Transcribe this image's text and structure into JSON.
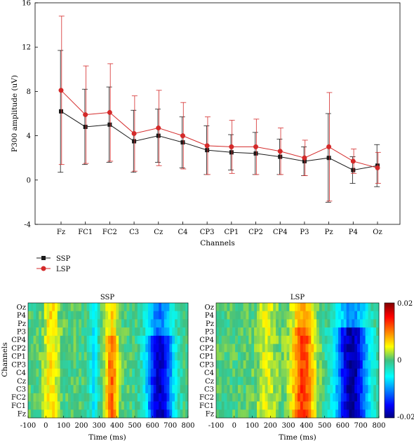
{
  "chart_data": [
    {
      "type": "line",
      "xlabel": "Channels",
      "ylabel": "P300 amplitude (uV)",
      "ylim": [
        -4,
        16
      ],
      "yticks": [
        -4,
        0,
        4,
        8,
        12,
        16
      ],
      "categories": [
        "Fz",
        "FC1",
        "FC2",
        "C3",
        "Cz",
        "C4",
        "CP3",
        "CP1",
        "CP2",
        "CP4",
        "P3",
        "Pz",
        "P4",
        "Oz"
      ],
      "grid": false,
      "legend_position": "bottom-left",
      "series": [
        {
          "name": "SSP",
          "color": "#1a1a1a",
          "values": [
            6.2,
            4.8,
            5.0,
            3.5,
            4.0,
            3.4,
            2.7,
            2.5,
            2.4,
            2.1,
            1.7,
            2.0,
            0.9,
            1.3
          ],
          "error": [
            5.5,
            3.4,
            3.4,
            2.8,
            2.4,
            2.3,
            2.2,
            1.6,
            1.9,
            1.6,
            1.3,
            4.0,
            1.2,
            1.9
          ]
        },
        {
          "name": "LSP",
          "color": "#d42a2a",
          "values": [
            8.1,
            5.9,
            6.1,
            4.2,
            4.7,
            4.0,
            3.1,
            3.0,
            3.0,
            2.6,
            2.0,
            3.0,
            1.7,
            1.1
          ],
          "error": [
            6.7,
            4.4,
            4.4,
            3.4,
            3.4,
            3.0,
            2.6,
            2.4,
            2.5,
            2.1,
            1.6,
            4.9,
            1.1,
            1.4
          ]
        }
      ]
    },
    {
      "type": "heatmap",
      "title": "SSP",
      "xlabel": "Time (ms)",
      "ylabel": "Channels",
      "x_range": [
        -100,
        800
      ],
      "xticks": [
        -100,
        0,
        100,
        200,
        300,
        400,
        500,
        600,
        700,
        800
      ],
      "rows": [
        "Oz",
        "P4",
        "Pz",
        "P3",
        "CP4",
        "CP2",
        "CP1",
        "CP3",
        "C4",
        "Cz",
        "C3",
        "FC2",
        "FC1",
        "Fz"
      ]
    },
    {
      "type": "heatmap",
      "title": "LSP",
      "xlabel": "Time (ms)",
      "x_range": [
        -100,
        800
      ],
      "xticks": [
        -100,
        0,
        100,
        200,
        300,
        400,
        500,
        600,
        700,
        800
      ],
      "rows": [
        "Oz",
        "P4",
        "Pz",
        "P3",
        "CP4",
        "CP2",
        "CP1",
        "CP3",
        "C4",
        "Cz",
        "C3",
        "FC2",
        "FC1",
        "Fz"
      ]
    },
    {
      "type": "colorbar",
      "range": [
        -0.02,
        0.02
      ],
      "tick_labels": [
        "0.02",
        "0",
        "-0.02"
      ]
    }
  ]
}
